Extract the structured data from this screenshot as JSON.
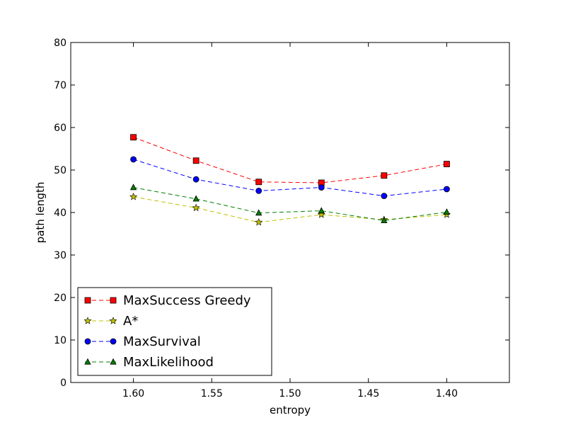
{
  "chart_data": {
    "type": "line",
    "title": "",
    "xlabel": "entropy",
    "ylabel": "path length",
    "x": [
      1.6,
      1.56,
      1.52,
      1.48,
      1.44,
      1.4
    ],
    "xlim": [
      1.64,
      1.36
    ],
    "ylim": [
      0,
      80
    ],
    "x_inverted": true,
    "xticks": [
      1.6,
      1.55,
      1.5,
      1.45,
      1.4
    ],
    "xtick_labels": [
      "1.60",
      "1.55",
      "1.50",
      "1.45",
      "1.40"
    ],
    "yticks": [
      0,
      10,
      20,
      30,
      40,
      50,
      60,
      70,
      80
    ],
    "ytick_labels": [
      "0",
      "10",
      "20",
      "30",
      "40",
      "50",
      "60",
      "70",
      "80"
    ],
    "grid": false,
    "legend_position": "lower-left",
    "series": [
      {
        "name": "MaxSuccess Greedy",
        "marker": "square",
        "color": "#ff0000",
        "values": [
          57.7,
          52.2,
          47.2,
          47.0,
          48.7,
          51.4
        ]
      },
      {
        "name": "A*",
        "marker": "star",
        "color": "#bfbf00",
        "values": [
          43.7,
          41.1,
          37.7,
          39.5,
          38.3,
          39.5
        ]
      },
      {
        "name": "MaxSurvival",
        "marker": "circle",
        "color": "#0000ff",
        "values": [
          52.5,
          47.8,
          45.1,
          45.9,
          43.9,
          45.5
        ]
      },
      {
        "name": "MaxLikelihood",
        "marker": "triangle",
        "color": "#007f00",
        "values": [
          45.9,
          43.2,
          39.9,
          40.4,
          38.1,
          40.1
        ]
      }
    ]
  }
}
